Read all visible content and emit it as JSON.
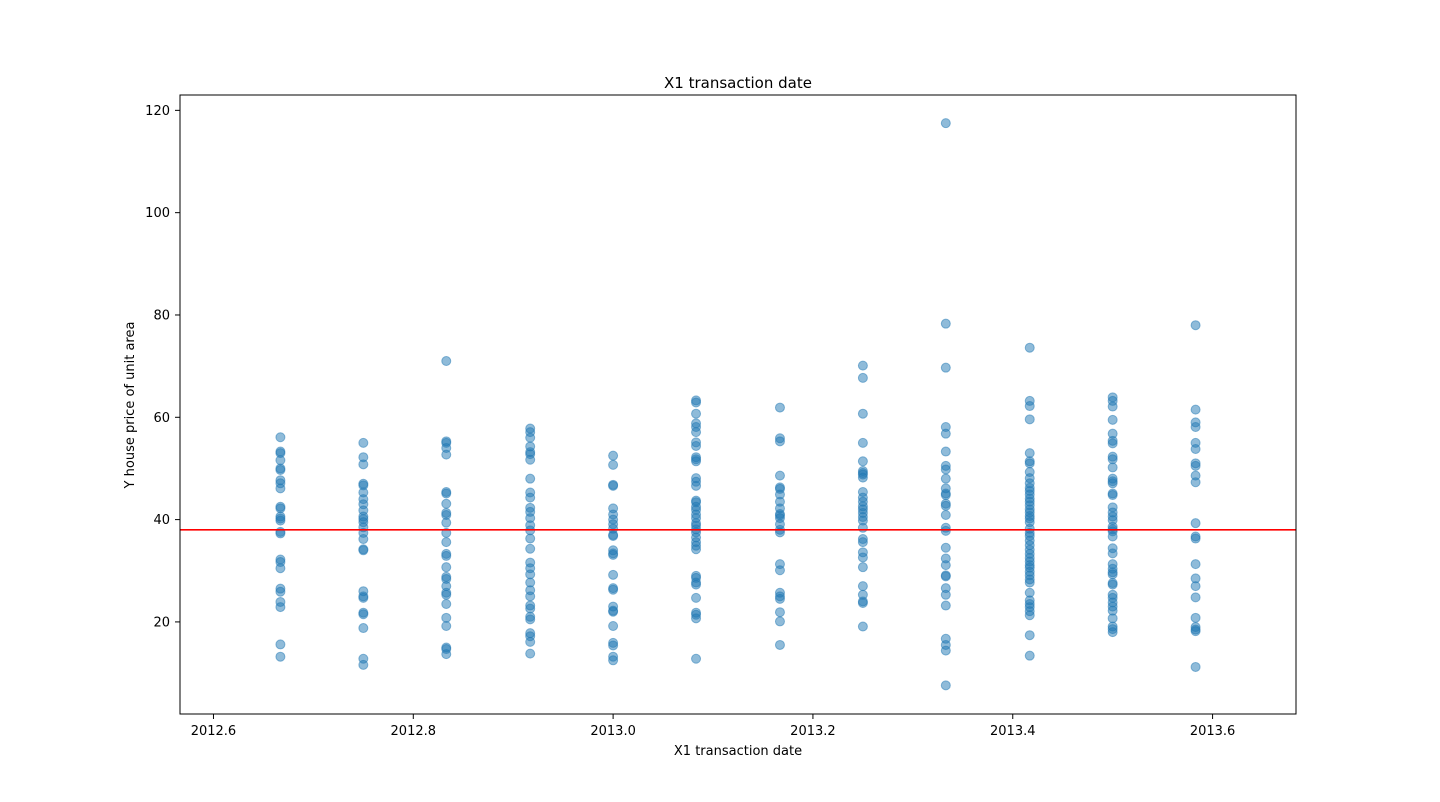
{
  "chart_data": {
    "type": "scatter",
    "title": "X1 transaction date",
    "xlabel": "X1 transaction date",
    "ylabel": "Y house price of unit area",
    "xlim": [
      2012.5665,
      2013.6835
    ],
    "ylim": [
      2.0,
      123.0
    ],
    "xticks": [
      "2012.6",
      "2012.8",
      "2013.0",
      "2013.2",
      "2013.4",
      "2013.6"
    ],
    "yticks": [
      "20",
      "40",
      "60",
      "80",
      "100",
      "120"
    ],
    "grid": false,
    "point_color": "#1f77b4",
    "point_alpha": 0.5,
    "reference_line": {
      "y": 38.0,
      "color": "#ff0000"
    },
    "series": [
      {
        "x": 2012.667,
        "y": [
          56.1,
          53.3,
          53.0,
          51.6,
          50.0,
          49.7,
          47.7,
          47.1,
          46.1,
          42.5,
          42.2,
          40.6,
          40.2,
          39.8,
          37.6,
          37.3,
          32.2,
          31.7,
          30.5,
          26.5,
          25.9,
          23.9,
          22.9,
          15.6,
          13.2
        ]
      },
      {
        "x": 2012.75,
        "y": [
          55.0,
          52.2,
          50.8,
          47.0,
          46.7,
          45.3,
          44.0,
          43.0,
          41.8,
          40.6,
          40.1,
          39.5,
          38.5,
          37.4,
          36.2,
          34.2,
          34.0,
          26.0,
          25.0,
          24.7,
          21.8,
          21.5,
          18.8,
          12.8,
          11.6
        ]
      },
      {
        "x": 2012.833,
        "y": [
          71.0,
          55.3,
          55.0,
          54.0,
          52.7,
          45.4,
          45.1,
          43.1,
          41.3,
          40.9,
          39.4,
          37.4,
          35.6,
          33.3,
          32.9,
          30.7,
          28.8,
          28.4,
          27.0,
          25.7,
          25.3,
          23.5,
          20.8,
          19.2,
          15.0,
          14.7,
          13.7
        ]
      },
      {
        "x": 2012.917,
        "y": [
          57.8,
          57.1,
          56.0,
          54.3,
          53.2,
          52.8,
          51.7,
          48.0,
          45.3,
          44.3,
          42.3,
          41.5,
          40.3,
          38.9,
          37.9,
          36.3,
          34.3,
          31.6,
          30.5,
          29.3,
          27.7,
          26.2,
          25.0,
          23.2,
          22.6,
          21.0,
          20.5,
          17.8,
          17.2,
          16.1,
          13.8
        ]
      },
      {
        "x": 2013.0,
        "y": [
          52.5,
          50.7,
          46.8,
          46.6,
          42.2,
          41.0,
          40.0,
          39.1,
          38.2,
          37.0,
          36.8,
          34.0,
          33.4,
          33.1,
          29.2,
          26.6,
          26.3,
          23.0,
          22.2,
          22.0,
          19.2,
          15.9,
          15.4,
          13.2,
          12.5
        ]
      },
      {
        "x": 2013.083,
        "y": [
          63.3,
          62.9,
          60.7,
          58.8,
          58.1,
          57.1,
          55.1,
          54.4,
          52.2,
          51.8,
          51.4,
          48.1,
          47.4,
          46.6,
          43.7,
          43.4,
          42.5,
          41.9,
          41.0,
          40.3,
          39.3,
          38.8,
          38.1,
          37.5,
          36.5,
          35.6,
          34.9,
          34.2,
          29.0,
          28.6,
          27.7,
          27.3,
          24.7,
          21.8,
          21.4,
          20.7,
          12.8
        ]
      },
      {
        "x": 2013.167,
        "y": [
          61.9,
          55.9,
          55.3,
          48.6,
          46.3,
          46.0,
          44.9,
          43.5,
          42.2,
          41.1,
          40.8,
          40.3,
          39.1,
          38.0,
          37.5,
          31.3,
          30.1,
          25.7,
          25.0,
          24.5,
          21.9,
          20.1,
          15.5
        ]
      },
      {
        "x": 2013.25,
        "y": [
          70.1,
          67.7,
          60.7,
          55.0,
          51.4,
          49.5,
          49.1,
          48.8,
          48.2,
          45.4,
          44.3,
          43.5,
          42.6,
          42.0,
          41.3,
          40.5,
          39.8,
          38.4,
          36.2,
          35.6,
          33.6,
          32.6,
          30.7,
          27.0,
          25.3,
          24.0,
          23.7,
          19.1
        ]
      },
      {
        "x": 2013.333,
        "y": [
          117.5,
          78.3,
          69.7,
          58.1,
          56.8,
          53.3,
          50.5,
          49.8,
          48.0,
          46.1,
          45.1,
          44.8,
          43.1,
          42.7,
          40.9,
          38.4,
          37.8,
          34.5,
          32.4,
          31.1,
          29.1,
          28.9,
          26.6,
          25.3,
          23.2,
          16.7,
          15.5,
          14.4,
          7.6
        ]
      },
      {
        "x": 2013.417,
        "y": [
          73.6,
          63.2,
          62.2,
          59.6,
          53.0,
          51.4,
          51.0,
          49.3,
          48.1,
          47.1,
          46.2,
          45.6,
          44.9,
          44.1,
          43.5,
          42.8,
          42.0,
          41.4,
          40.7,
          40.2,
          39.5,
          38.2,
          37.4,
          36.8,
          35.9,
          35.0,
          34.1,
          33.3,
          32.5,
          31.8,
          31.1,
          30.6,
          29.8,
          29.1,
          28.3,
          27.7,
          25.7,
          24.2,
          23.5,
          22.9,
          22.1,
          21.3,
          17.4,
          13.4
        ]
      },
      {
        "x": 2013.5,
        "y": [
          63.9,
          63.2,
          62.1,
          59.5,
          56.8,
          55.4,
          54.9,
          52.3,
          51.8,
          50.2,
          48.0,
          47.5,
          47.1,
          45.1,
          44.8,
          42.4,
          41.4,
          40.6,
          39.9,
          38.6,
          38.1,
          37.7,
          36.7,
          34.4,
          33.4,
          31.3,
          30.4,
          29.7,
          29.3,
          27.6,
          27.3,
          25.3,
          24.7,
          23.8,
          23.0,
          22.2,
          20.7,
          19.1,
          18.6,
          18.0
        ]
      },
      {
        "x": 2013.583,
        "y": [
          78.0,
          61.5,
          59.0,
          58.1,
          55.0,
          53.8,
          51.0,
          50.5,
          48.6,
          47.3,
          39.3,
          36.7,
          36.3,
          31.3,
          28.5,
          27.0,
          24.8,
          20.8,
          19.0,
          18.5,
          18.2,
          11.2
        ]
      }
    ]
  }
}
